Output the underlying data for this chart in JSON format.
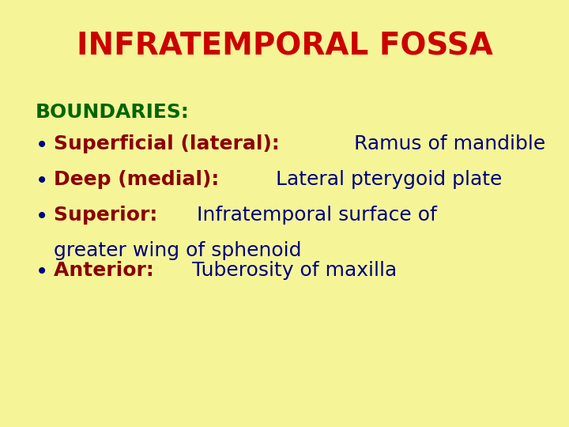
{
  "title": "INFRATEMPORAL FOSSA",
  "title_color": "#cc0000",
  "title_fontsize": 28,
  "background_color": "#f5f598",
  "boundaries_label": "BOUNDARIES:",
  "boundaries_color": "#006600",
  "boundaries_fontsize": 18,
  "bullet_fontsize": 18,
  "bullet_color": "#000080",
  "items": [
    {
      "label": "Superficial (lateral):",
      "label_color": "#8b0000",
      "desc": "Ramus of mandible",
      "desc_color": "#000080",
      "wrap": false
    },
    {
      "label": "Deep (medial):",
      "label_color": "#8b0000",
      "desc": "Lateral pterygoid plate",
      "desc_color": "#000080",
      "wrap": false
    },
    {
      "label": "Superior:",
      "label_color": "#8b0000",
      "desc": "Infratemporal surface of",
      "desc2": "greater wing of sphenoid",
      "desc_color": "#000080",
      "wrap": true
    },
    {
      "label": "Anterior:",
      "label_color": "#8b0000",
      "desc": "Tuberosity of maxilla",
      "desc_color": "#000080",
      "wrap": false
    }
  ]
}
